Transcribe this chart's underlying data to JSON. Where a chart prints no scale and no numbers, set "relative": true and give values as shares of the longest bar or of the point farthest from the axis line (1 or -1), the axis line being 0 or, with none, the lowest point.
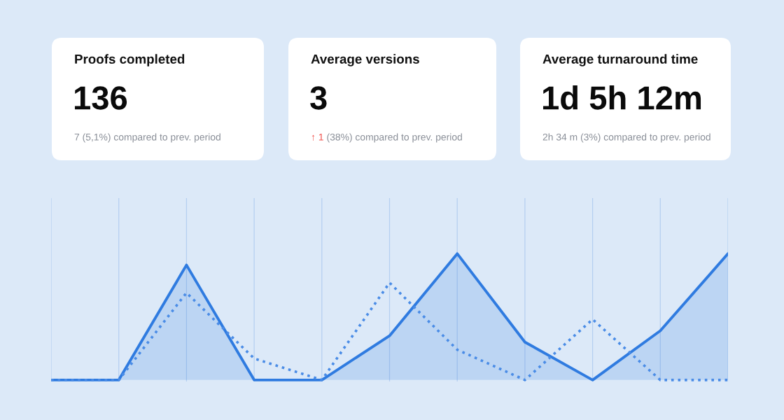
{
  "chart_data": [
    {
      "type": "other",
      "title": "Proofs completed",
      "subtitle": "136",
      "annotations": [
        "7 (5,1%) compared to prev. period"
      ]
    },
    {
      "type": "other",
      "title": "Average versions",
      "subtitle": "3",
      "color": "#f0524d",
      "annotations": [
        "↑ 1",
        "(38%) compared to prev. period"
      ]
    },
    {
      "type": "other",
      "title": "Average turnaround time",
      "subtitle": "1d 5h 12m",
      "annotations": [
        "2h 34 m (3%) compared to prev. period"
      ]
    },
    {
      "type": "line",
      "relative": true,
      "grid": "x",
      "categories": [
        null,
        null,
        null,
        null,
        null,
        null,
        null,
        null,
        null,
        null,
        null
      ],
      "series": [
        {
          "type": "area",
          "color": "#2f7be0",
          "values": [
            0,
            0,
            0.91,
            0,
            0,
            0.35,
            1.0,
            0.3,
            0,
            0.39,
            1.0
          ]
        },
        {
          "type": "line",
          "line_style": "dotted",
          "color": "#4a8ce6",
          "values": [
            0,
            0,
            0.69,
            0.17,
            0,
            0.77,
            0.24,
            0,
            0.48,
            0,
            0
          ]
        }
      ]
    }
  ]
}
